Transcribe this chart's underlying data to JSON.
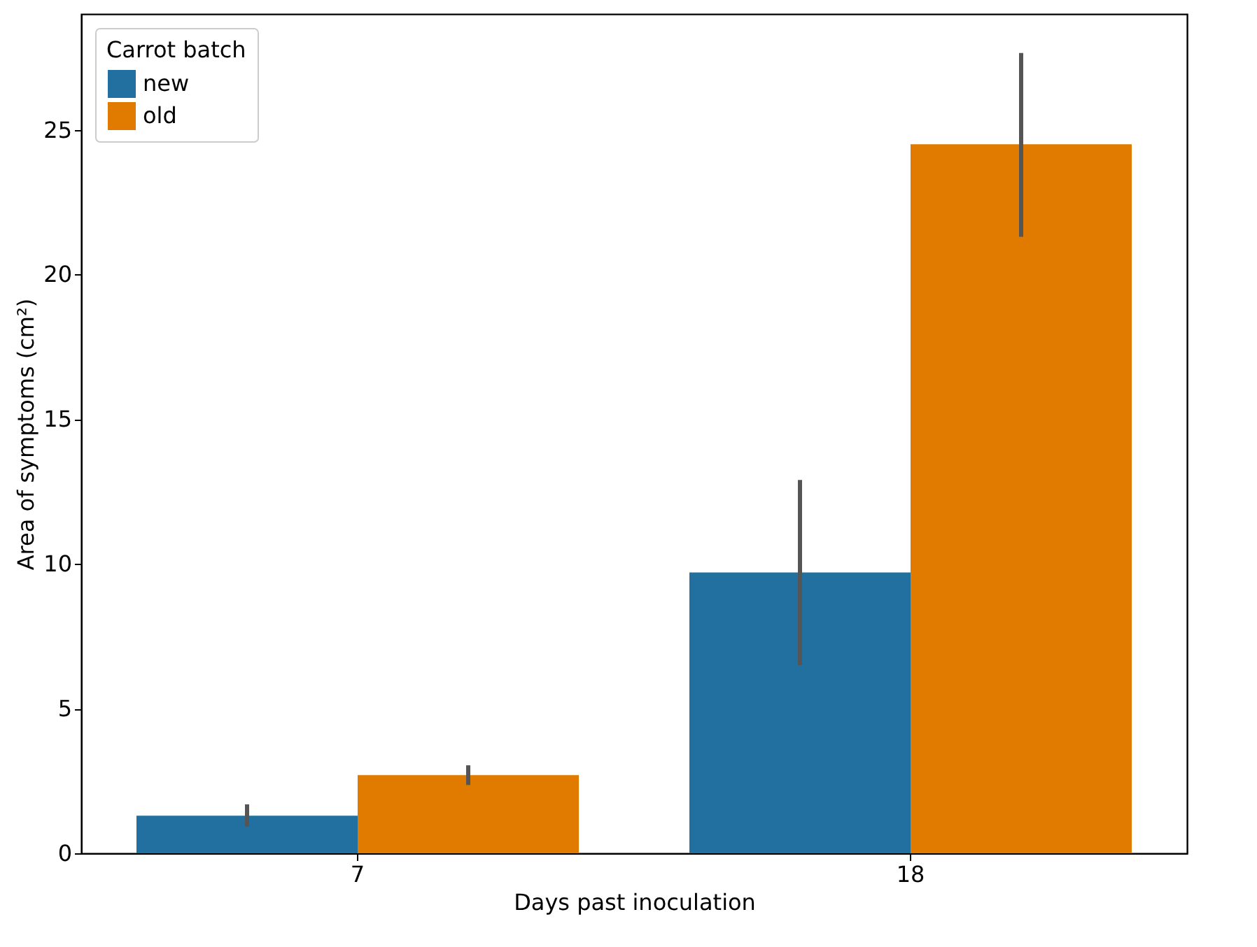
{
  "chart_data": {
    "type": "bar",
    "xlabel": "Days past inoculation",
    "ylabel": "Area of symptoms (cm²)",
    "legend_title": "Carrot batch",
    "legend": "top left",
    "grid": false,
    "categories": [
      "7",
      "18"
    ],
    "ylim": [
      0,
      29
    ],
    "yticks": [
      0,
      5,
      10,
      15,
      20,
      25
    ],
    "series": [
      {
        "name": "new",
        "color": "#22709f",
        "values": [
          1.3,
          9.7
        ],
        "errors": [
          [
            0.92,
            1.69
          ],
          [
            6.5,
            12.9
          ]
        ]
      },
      {
        "name": "old",
        "color": "#e07b00",
        "values": [
          2.7,
          24.5
        ],
        "errors": [
          [
            2.36,
            3.04
          ],
          [
            21.3,
            27.65
          ]
        ]
      }
    ]
  }
}
